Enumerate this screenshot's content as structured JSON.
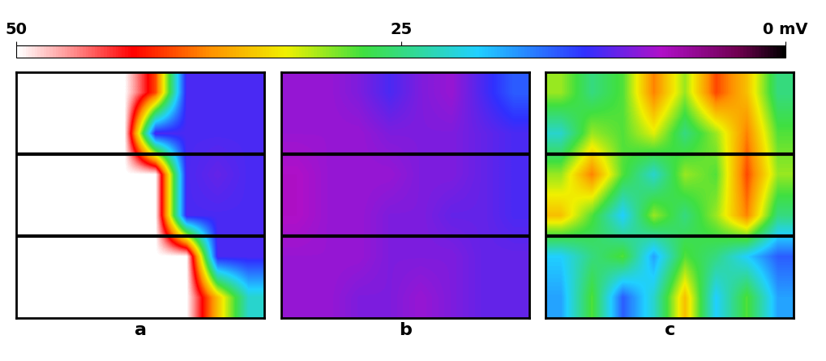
{
  "chart_data": {
    "type": "heatmap",
    "tick_labels": false,
    "colorbar_range": [
      50,
      0
    ],
    "colorbar_ticks": [
      50,
      25,
      {
        "value": 0,
        "label": "0 mV"
      }
    ],
    "panels": [
      {
        "label": "a",
        "cells": [
          [
            50,
            50,
            50,
            50,
            40,
            12,
            12,
            12
          ],
          [
            50,
            50,
            50,
            50,
            12,
            12,
            12,
            12
          ],
          [
            50,
            50,
            50,
            50,
            50,
            12,
            11,
            12
          ],
          [
            50,
            50,
            50,
            50,
            50,
            12,
            12,
            12
          ],
          [
            50,
            50,
            50,
            50,
            50,
            50,
            12,
            12
          ],
          [
            50,
            50,
            50,
            50,
            50,
            50,
            35,
            22
          ]
        ]
      },
      {
        "label": "b",
        "cells": [
          [
            9,
            9,
            10,
            12,
            10,
            9,
            12,
            15
          ],
          [
            9,
            9,
            9,
            10,
            10,
            10,
            11,
            12
          ],
          [
            8,
            9,
            9,
            9,
            10,
            10,
            11,
            12
          ],
          [
            8,
            9,
            9,
            10,
            10,
            11,
            11,
            12
          ],
          [
            9,
            9,
            9,
            10,
            10,
            10,
            11,
            11
          ],
          [
            9,
            9,
            10,
            10,
            9,
            10,
            11,
            11
          ]
        ]
      },
      {
        "label": "c",
        "cells": [
          [
            30,
            25,
            28,
            38,
            30,
            40,
            35,
            25
          ],
          [
            22,
            30,
            28,
            32,
            25,
            30,
            38,
            28
          ],
          [
            30,
            38,
            28,
            22,
            30,
            28,
            40,
            30
          ],
          [
            35,
            28,
            20,
            30,
            25,
            30,
            38,
            25
          ],
          [
            20,
            25,
            28,
            18,
            28,
            25,
            20,
            15
          ],
          [
            18,
            28,
            15,
            22,
            35,
            20,
            28,
            18
          ]
        ]
      }
    ]
  }
}
